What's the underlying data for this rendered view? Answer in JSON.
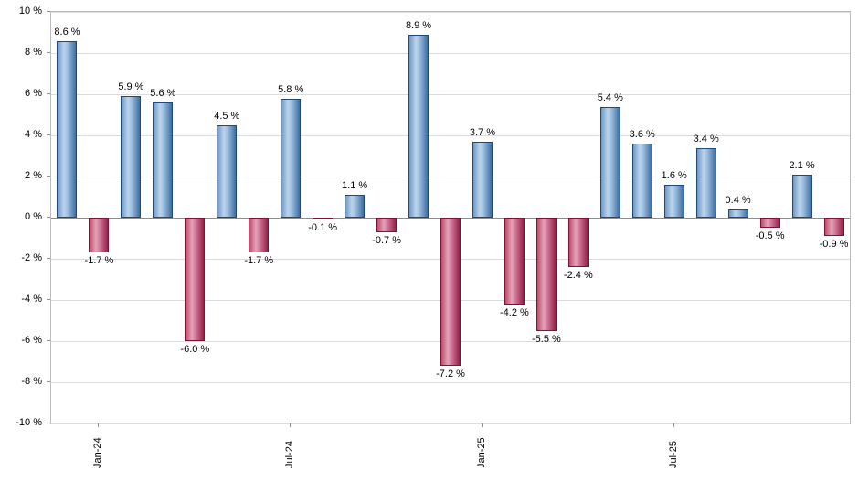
{
  "chart_data": {
    "type": "bar",
    "title": "",
    "xlabel": "",
    "ylabel": "",
    "ylim": [
      -10,
      10
    ],
    "grid": true,
    "legend": null,
    "values": [
      8.6,
      -1.7,
      5.9,
      5.6,
      -6.0,
      4.5,
      -1.7,
      5.8,
      -0.1,
      1.1,
      -0.7,
      8.9,
      -7.2,
      3.7,
      -4.2,
      -5.5,
      -2.4,
      5.4,
      3.6,
      1.6,
      3.4,
      0.4,
      -0.5,
      2.1,
      -0.9
    ],
    "bar_labels": [
      "8.6 %",
      "-1.7 %",
      "5.9 %",
      "5.6 %",
      "-6.0 %",
      "4.5 %",
      "-1.7 %",
      "5.8 %",
      "-0.1 %",
      "1.1 %",
      "-0.7 %",
      "8.9 %",
      "-7.2 %",
      "3.7 %",
      "-4.2 %",
      "-5.5 %",
      "-2.4 %",
      "5.4 %",
      "3.6 %",
      "1.6 %",
      "3.4 %",
      "0.4 %",
      "-0.5 %",
      "2.1 %",
      "-0.9 %"
    ],
    "y_ticks": [
      {
        "value": 10,
        "label": "10 %"
      },
      {
        "value": 8,
        "label": "8 %"
      },
      {
        "value": 6,
        "label": "6 %"
      },
      {
        "value": 4,
        "label": "4 %"
      },
      {
        "value": 2,
        "label": "2 %"
      },
      {
        "value": 0,
        "label": "0 %"
      },
      {
        "value": -2,
        "label": "-2 %"
      },
      {
        "value": -4,
        "label": "-4 %"
      },
      {
        "value": -6,
        "label": "-6 %"
      },
      {
        "value": -8,
        "label": "-8 %"
      },
      {
        "value": -10,
        "label": "-10 %"
      }
    ],
    "x_ticks": [
      {
        "index": 1,
        "label": "Jan-24"
      },
      {
        "index": 7,
        "label": "Jul-24"
      },
      {
        "index": 13,
        "label": "Jan-25"
      },
      {
        "index": 19,
        "label": "Jul-25"
      }
    ],
    "colors": {
      "positive_bar": "#89aed6",
      "positive_border": "#1d4a78",
      "negative_bar": "#c34b6e",
      "negative_border": "#7d1336",
      "gridline": "#dcdcdc",
      "zero_line": "#8c8c8c",
      "background": "#ffffff"
    }
  }
}
